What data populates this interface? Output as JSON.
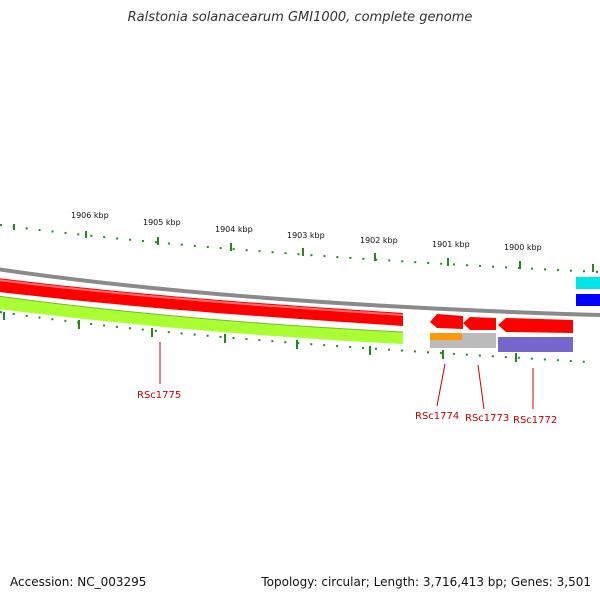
{
  "title": "Ralstonia solanacearum GMI1000, complete genome",
  "footer": {
    "accession": "Accession: NC_003295",
    "summary": "Topology: circular; Length: 3,716,413 bp; Genes: 3,501"
  },
  "scale_labels": [
    "1906 kbp",
    "1905 kbp",
    "1904 kbp",
    "1903 kbp",
    "1902 kbp",
    "1901 kbp",
    "1900 kbp"
  ],
  "gene_labels": [
    "RSc1775",
    "RSc1774",
    "RSc1773",
    "RSc1772"
  ],
  "colors": {
    "backbone": "#8a8a8a",
    "forward_gene": "#ff0000",
    "reverse_gene": "#ff0000",
    "lime_feature": "#aaff33",
    "orange_feature": "#ff9900",
    "gray_feature": "#bbbbbb",
    "purple_feature": "#7766cc",
    "cyan_feature": "#00e5e5",
    "blue_feature": "#0000ff",
    "ticks": "#228822",
    "gene_label": "#cc0000"
  }
}
